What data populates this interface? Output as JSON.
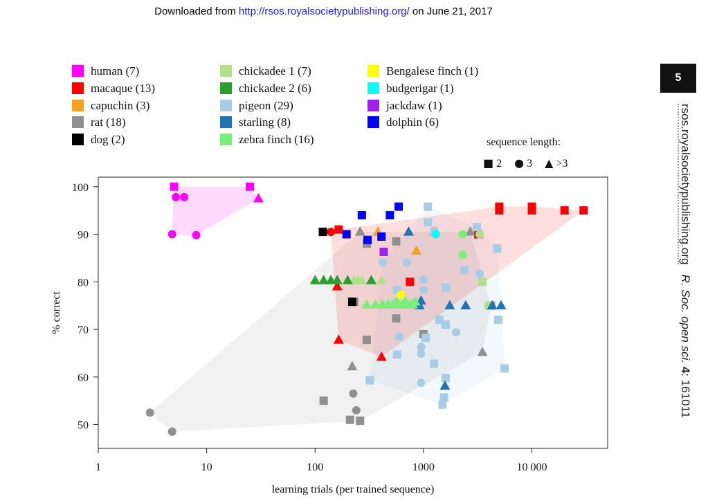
{
  "header": {
    "prefix": "Downloaded from ",
    "link": "http://rsos.royalsocietypublishing.org/",
    "suffix": " on June 21, 2017"
  },
  "page_number": "5",
  "side_text": {
    "journal_url": "rsos.royalsocietypublishing.org",
    "citation_italic": "R. Soc. open sci.",
    "citation_bold": "4",
    "citation_rest": ": 161011"
  },
  "colors": {
    "human": "#ff00ff",
    "macaque": "#ff0000",
    "capuchin": "#f4a020",
    "rat": "#909090",
    "dog": "#000000",
    "chickadee1": "#b0e08c",
    "chickadee2": "#2e9e2e",
    "pigeon": "#a6cce6",
    "starling": "#2272b4",
    "zebrafinch": "#78f078",
    "bengalese": "#ffff00",
    "budgerigar": "#00ffff",
    "jackdaw": "#a020f0",
    "dolphin": "#0000ff"
  },
  "sequence_legend": {
    "title": "sequence length:",
    "items": [
      {
        "shape": "square",
        "label": "2"
      },
      {
        "shape": "circle",
        "label": "3"
      },
      {
        "shape": "triangle",
        "label": ">3"
      }
    ]
  },
  "chart_data": {
    "type": "scatter",
    "xlabel": "learning trials (per trained sequence)",
    "ylabel": "% correct",
    "xscale": "log",
    "xlim": [
      1,
      50000
    ],
    "ylim": [
      45,
      102
    ],
    "xticks": [
      1,
      10,
      100,
      1000,
      10000
    ],
    "xtick_labels": [
      "1",
      "10",
      "100",
      "1000",
      "10 000"
    ],
    "yticks": [
      50,
      60,
      70,
      80,
      90,
      100
    ],
    "ytick_labels": [
      "50",
      "60",
      "70",
      "80",
      "90",
      "100"
    ],
    "grid": false,
    "legend_position": "top",
    "series": [
      {
        "key": "human",
        "name": "human (7)",
        "hull": true,
        "points": [
          [
            5,
            100,
            "s"
          ],
          [
            25,
            100,
            "s"
          ],
          [
            5.2,
            97.8,
            "c"
          ],
          [
            6.2,
            97.8,
            "c"
          ],
          [
            30,
            97.5,
            "t"
          ],
          [
            4.8,
            90,
            "c"
          ],
          [
            8,
            89.8,
            "c"
          ]
        ]
      },
      {
        "key": "macaque",
        "name": "macaque (13)",
        "hull": true,
        "points": [
          [
            140,
            90.5,
            "c"
          ],
          [
            165,
            91,
            "s"
          ],
          [
            160,
            79,
            "t"
          ],
          [
            165,
            67.8,
            "t"
          ],
          [
            410,
            64.2,
            "t"
          ],
          [
            750,
            80,
            "s"
          ],
          [
            3200,
            90,
            "s"
          ],
          [
            5000,
            95,
            "s"
          ],
          [
            5000,
            95.8,
            "s"
          ],
          [
            10000,
            95,
            "s"
          ],
          [
            10000,
            95.8,
            "s"
          ],
          [
            20000,
            95,
            "s"
          ],
          [
            30000,
            95,
            "s"
          ]
        ]
      },
      {
        "key": "capuchin",
        "name": "capuchin (3)",
        "hull": false,
        "points": [
          [
            380,
            90.5,
            "t"
          ],
          [
            860,
            86.5,
            "t"
          ],
          [
            1250,
            90.5,
            "t"
          ]
        ]
      },
      {
        "key": "rat",
        "name": "rat (18)",
        "hull": true,
        "points": [
          [
            3,
            52.5,
            "c"
          ],
          [
            4.8,
            48.5,
            "c"
          ],
          [
            120,
            55,
            "s"
          ],
          [
            210,
            51,
            "s"
          ],
          [
            260,
            50.8,
            "s"
          ],
          [
            225,
            56.5,
            "c"
          ],
          [
            240,
            53,
            "c"
          ],
          [
            220,
            62.2,
            "t"
          ],
          [
            260,
            90.5,
            "t"
          ],
          [
            300,
            67.8,
            "s"
          ],
          [
            300,
            88,
            "s"
          ],
          [
            560,
            88.5,
            "s"
          ],
          [
            560,
            72.3,
            "s"
          ],
          [
            1000,
            69,
            "s"
          ],
          [
            2700,
            90.5,
            "t"
          ],
          [
            3500,
            65.2,
            "t"
          ],
          [
            4200,
            75,
            "s"
          ],
          [
            230,
            75.8,
            "s"
          ]
        ]
      },
      {
        "key": "dog",
        "name": "dog (2)",
        "hull": false,
        "points": [
          [
            118,
            90.5,
            "s"
          ],
          [
            220,
            75.8,
            "s"
          ]
        ]
      },
      {
        "key": "chickadee1",
        "name": "chickadee 1 (7)",
        "hull": false,
        "points": [
          [
            230,
            80.3,
            "t"
          ],
          [
            270,
            80.3,
            "t"
          ],
          [
            410,
            80.3,
            "t"
          ],
          [
            3300,
            90,
            "c"
          ],
          [
            3500,
            80,
            "s"
          ],
          [
            4000,
            75,
            "s"
          ],
          [
            250,
            80.3,
            "t"
          ]
        ]
      },
      {
        "key": "chickadee2",
        "name": "chickadee 2 (6)",
        "hull": false,
        "points": [
          [
            100,
            80.3,
            "t"
          ],
          [
            120,
            80.3,
            "t"
          ],
          [
            140,
            80.3,
            "t"
          ],
          [
            160,
            80.3,
            "t"
          ],
          [
            200,
            80.3,
            "t"
          ],
          [
            330,
            80.3,
            "t"
          ]
        ]
      },
      {
        "key": "pigeon",
        "name": "pigeon (29)",
        "hull": true,
        "points": [
          [
            1100,
            95.8,
            "s"
          ],
          [
            1100,
            92.5,
            "s"
          ],
          [
            1250,
            90.5,
            "s"
          ],
          [
            3100,
            91.5,
            "s"
          ],
          [
            4800,
            87,
            "s"
          ],
          [
            2400,
            82.5,
            "s"
          ],
          [
            1600,
            78.8,
            "s"
          ],
          [
            3300,
            81.7,
            "c"
          ],
          [
            1000,
            80.5,
            "c"
          ],
          [
            1000,
            78.3,
            "c"
          ],
          [
            570,
            78.3,
            "s"
          ],
          [
            420,
            84.1,
            "c"
          ],
          [
            700,
            84.1,
            "c"
          ],
          [
            1400,
            72,
            "s"
          ],
          [
            2000,
            69.4,
            "c"
          ],
          [
            600,
            68.5,
            "c"
          ],
          [
            1050,
            68.2,
            "s"
          ],
          [
            950,
            66.3,
            "c"
          ],
          [
            950,
            64.9,
            "c"
          ],
          [
            570,
            64.7,
            "s"
          ],
          [
            1250,
            62.8,
            "s"
          ],
          [
            5600,
            61.8,
            "s"
          ],
          [
            4900,
            72,
            "s"
          ],
          [
            1600,
            59.8,
            "s"
          ],
          [
            320,
            59.3,
            "s"
          ],
          [
            950,
            58.8,
            "c"
          ],
          [
            1550,
            55.7,
            "s"
          ],
          [
            1500,
            54.2,
            "s"
          ],
          [
            1600,
            71,
            "s"
          ]
        ]
      },
      {
        "key": "starling",
        "name": "starling (8)",
        "hull": false,
        "points": [
          [
            730,
            90.5,
            "t"
          ],
          [
            950,
            76,
            "t"
          ],
          [
            1750,
            75,
            "t"
          ],
          [
            2450,
            75,
            "t"
          ],
          [
            4300,
            75,
            "t"
          ],
          [
            5200,
            75,
            "t"
          ],
          [
            1580,
            58.1,
            "t"
          ],
          [
            920,
            75,
            "t"
          ]
        ]
      },
      {
        "key": "zebrafinch",
        "name": "zebra finch (16)",
        "hull": false,
        "points": [
          [
            300,
            75.2,
            "t"
          ],
          [
            360,
            75.2,
            "t"
          ],
          [
            420,
            75.2,
            "t"
          ],
          [
            540,
            75.2,
            "t"
          ],
          [
            590,
            75.2,
            "t"
          ],
          [
            690,
            75.2,
            "t"
          ],
          [
            800,
            75.2,
            "t"
          ],
          [
            2300,
            85.7,
            "c"
          ],
          [
            2300,
            90,
            "c"
          ],
          [
            520,
            75.2,
            "t"
          ],
          [
            640,
            75.2,
            "t"
          ],
          [
            750,
            75.2,
            "t"
          ],
          [
            470,
            75.2,
            "t"
          ],
          [
            560,
            75.8,
            "t"
          ],
          [
            680,
            75.8,
            "t"
          ],
          [
            840,
            75.8,
            "t"
          ]
        ]
      },
      {
        "key": "bengalese",
        "name": "Bengalese finch (1)",
        "hull": false,
        "points": [
          [
            620,
            77.3,
            "c"
          ]
        ]
      },
      {
        "key": "budgerigar",
        "name": "budgerigar (1)",
        "hull": false,
        "points": [
          [
            1300,
            90,
            "c"
          ]
        ]
      },
      {
        "key": "jackdaw",
        "name": "jackdaw (1)",
        "hull": false,
        "points": [
          [
            430,
            86.3,
            "s"
          ]
        ]
      },
      {
        "key": "dolphin",
        "name": "dolphin (6)",
        "hull": false,
        "points": [
          [
            270,
            94,
            "s"
          ],
          [
            490,
            94,
            "s"
          ],
          [
            590,
            95.8,
            "s"
          ],
          [
            195,
            90,
            "s"
          ],
          [
            305,
            88.8,
            "s"
          ],
          [
            410,
            89.5,
            "s"
          ]
        ]
      }
    ]
  }
}
